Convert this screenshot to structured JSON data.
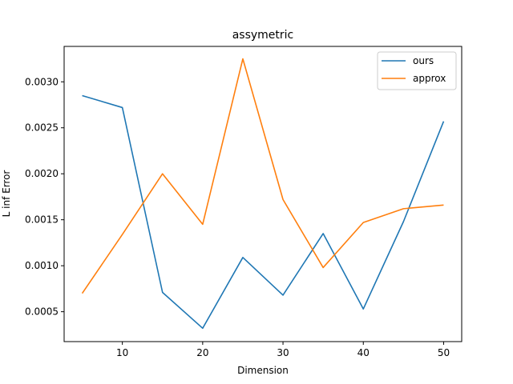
{
  "chart_data": {
    "type": "line",
    "title": "assymetric",
    "xlabel": "Dimension",
    "ylabel": "L inf Error",
    "x": [
      5,
      10,
      15,
      20,
      25,
      30,
      35,
      40,
      45,
      50
    ],
    "xlim": [
      2.75,
      52.25
    ],
    "ylim": [
      0.000175,
      0.003385
    ],
    "xticks": [
      10,
      20,
      30,
      40,
      50
    ],
    "yticks": [
      0.0005,
      0.001,
      0.0015,
      0.002,
      0.0025,
      0.003
    ],
    "xtick_labels": [
      "10",
      "20",
      "30",
      "40",
      "50"
    ],
    "ytick_labels": [
      "0.0005",
      "0.0010",
      "0.0015",
      "0.0020",
      "0.0025",
      "0.0030"
    ],
    "grid": false,
    "legend": {
      "position": "top-right"
    },
    "series": [
      {
        "name": "ours",
        "color": "#1f77b4",
        "values": [
          0.00285,
          0.00272,
          0.00071,
          0.00032,
          0.00109,
          0.00068,
          0.00135,
          0.00053,
          0.00148,
          0.00257
        ]
      },
      {
        "name": "approx",
        "color": "#ff7f0e",
        "values": [
          0.0007,
          0.00134,
          0.002,
          0.00145,
          0.00325,
          0.00172,
          0.00098,
          0.00147,
          0.00162,
          0.00166
        ]
      }
    ]
  }
}
